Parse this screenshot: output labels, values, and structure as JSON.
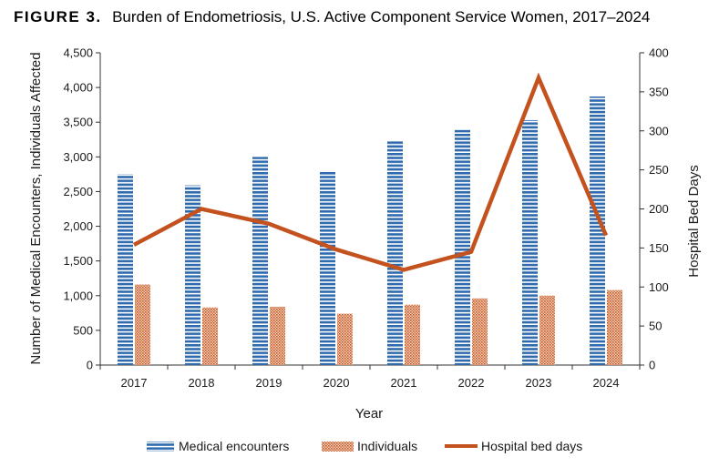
{
  "figure": {
    "label": "FIGURE 3.",
    "title": "Burden of Endometriosis, U.S. Active Component Service Women, 2017–2024"
  },
  "chart_data": {
    "type": "bar",
    "categories": [
      "2017",
      "2018",
      "2019",
      "2020",
      "2021",
      "2022",
      "2023",
      "2024"
    ],
    "series": [
      {
        "name": "Medical encounters",
        "type": "bar",
        "axis": "left",
        "color": "#2e6aad",
        "values": [
          2750,
          2590,
          3000,
          2800,
          3230,
          3390,
          3530,
          3870
        ]
      },
      {
        "name": "Individuals",
        "type": "bar",
        "axis": "left",
        "color": "#c65a2a",
        "values": [
          1160,
          830,
          840,
          740,
          870,
          960,
          1000,
          1080
        ]
      },
      {
        "name": "Hospital bed days",
        "type": "line",
        "axis": "right",
        "color": "#c4521f",
        "values": [
          154,
          200,
          181,
          148,
          122,
          145,
          368,
          166
        ]
      }
    ],
    "xlabel": "Year",
    "ylabel": "Number of Medical Encounters, Individuals Affected",
    "y2label": "Hospital Bed Days",
    "ylim": [
      0,
      4500
    ],
    "y2lim": [
      0,
      400
    ],
    "yticks": [
      "0",
      "500",
      "1,000",
      "1,500",
      "2,000",
      "2,500",
      "3,000",
      "3,500",
      "4,000",
      "4,500"
    ],
    "y2ticks": [
      "0",
      "50",
      "100",
      "150",
      "200",
      "250",
      "300",
      "350",
      "400"
    ],
    "grid": false,
    "legend_position": "bottom"
  }
}
